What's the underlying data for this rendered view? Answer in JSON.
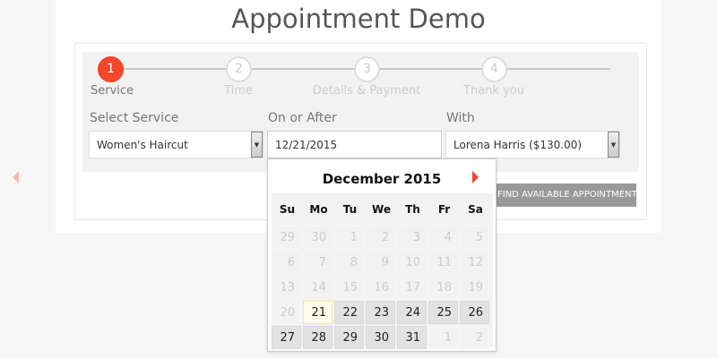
{
  "title": "Appointment Demo",
  "steps": [
    {
      "num": "1",
      "label": "Service",
      "active": true
    },
    {
      "num": "2",
      "label": "Time"
    },
    {
      "num": "3",
      "label": "Details & Payment"
    },
    {
      "num": "4",
      "label": "Thank you"
    }
  ],
  "form": {
    "service_label": "Select Service",
    "service_value": "Women's Haircut",
    "date_label": "On or After",
    "date_value": "12/21/2015",
    "with_label": "With",
    "with_value": "Lorena Harris ($130.00)",
    "dropdown_arrow": "▼",
    "find_button": "FIND AVAILABLE APPOINTMENTS"
  },
  "calendar": {
    "month": "December 2015",
    "weekdays": [
      "Su",
      "Mo",
      "Tu",
      "We",
      "Th",
      "Fr",
      "Sa"
    ],
    "weeks": [
      [
        "29",
        "30",
        "1",
        "2",
        "3",
        "4",
        "5"
      ],
      [
        "6",
        "7",
        "8",
        "9",
        "10",
        "11",
        "12"
      ],
      [
        "13",
        "14",
        "15",
        "16",
        "17",
        "18",
        "19"
      ],
      [
        "20",
        "21",
        "22",
        "23",
        "24",
        "25",
        "26"
      ],
      [
        "27",
        "28",
        "29",
        "30",
        "31",
        "1",
        "2"
      ]
    ],
    "selected": "21",
    "available": [
      "22",
      "23",
      "24",
      "25",
      "26",
      "27",
      "28",
      "29",
      "30",
      "31"
    ],
    "accent": "#f4462b"
  }
}
